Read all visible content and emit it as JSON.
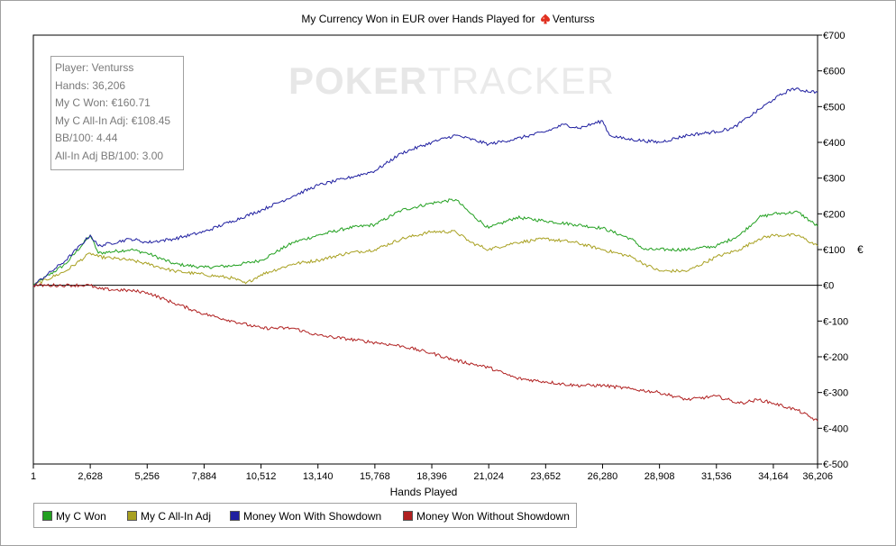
{
  "chart_data": {
    "type": "line",
    "title": "My Currency Won in EUR over Hands Played for",
    "player_name": "Venturss",
    "xlabel": "Hands Played",
    "ylabel": "€",
    "xlim": [
      1,
      36206
    ],
    "ylim": [
      -500,
      700
    ],
    "x_ticks": [
      "1",
      "2,628",
      "5,256",
      "7,884",
      "10,512",
      "13,140",
      "15,768",
      "18,396",
      "21,024",
      "23,652",
      "26,280",
      "28,908",
      "31,536",
      "34,164",
      "36,206"
    ],
    "y_ticks": [
      "€700",
      "€600",
      "€500",
      "€400",
      "€300",
      "€200",
      "€100",
      "€0",
      "€-100",
      "€-200",
      "€-300",
      "€-400",
      "€-500"
    ],
    "legend_position": "bottom",
    "grid": false,
    "series": [
      {
        "name": "My C Won",
        "color": "#22a020",
        "x": [
          1,
          1500,
          2628,
          3000,
          4500,
          5256,
          6500,
          7884,
          9200,
          10512,
          12000,
          13140,
          14500,
          15768,
          17000,
          18396,
          19500,
          20200,
          21024,
          22300,
          23652,
          25000,
          26280,
          27600,
          28200,
          28908,
          30200,
          31536,
          32600,
          33500,
          34164,
          35300,
          36206
        ],
        "y": [
          0,
          60,
          140,
          90,
          100,
          90,
          60,
          50,
          55,
          70,
          120,
          140,
          160,
          170,
          210,
          230,
          240,
          200,
          160,
          190,
          180,
          170,
          160,
          130,
          100,
          100,
          100,
          110,
          140,
          190,
          200,
          205,
          165
        ]
      },
      {
        "name": "My C All-In Adj",
        "color": "#a8a020",
        "x": [
          1,
          1500,
          2628,
          3000,
          4500,
          5256,
          6500,
          7884,
          9200,
          9800,
          10512,
          12000,
          13140,
          14500,
          15768,
          17000,
          18396,
          19500,
          20200,
          21024,
          22300,
          23652,
          25000,
          26280,
          27600,
          28200,
          28908,
          30200,
          31536,
          32600,
          33500,
          34164,
          35300,
          36206
        ],
        "y": [
          0,
          40,
          90,
          80,
          70,
          60,
          40,
          30,
          20,
          5,
          30,
          60,
          70,
          90,
          100,
          130,
          150,
          150,
          120,
          100,
          120,
          130,
          120,
          100,
          80,
          60,
          40,
          40,
          80,
          100,
          130,
          140,
          140,
          110
        ]
      },
      {
        "name": "Money Won With Showdown",
        "color": "#1f1fa0",
        "x": [
          1,
          1500,
          2628,
          3000,
          4500,
          5256,
          6500,
          7884,
          9200,
          10512,
          12000,
          13140,
          14500,
          15768,
          17000,
          18396,
          19500,
          21024,
          22300,
          23652,
          24500,
          25200,
          26280,
          26600,
          27300,
          28908,
          30200,
          31536,
          32300,
          33000,
          34164,
          35000,
          36206
        ],
        "y": [
          0,
          70,
          140,
          110,
          130,
          120,
          130,
          150,
          180,
          210,
          250,
          280,
          300,
          320,
          370,
          400,
          420,
          395,
          410,
          430,
          450,
          440,
          460,
          420,
          410,
          400,
          420,
          430,
          440,
          470,
          520,
          550,
          540
        ]
      },
      {
        "name": "Money Won Without Showdown",
        "color": "#b02020",
        "x": [
          1,
          1500,
          2628,
          3000,
          4500,
          5256,
          6500,
          7884,
          9200,
          10512,
          12000,
          13140,
          14500,
          15768,
          17000,
          18396,
          19500,
          21024,
          22300,
          23652,
          25000,
          26280,
          27600,
          28908,
          30200,
          31536,
          32600,
          33500,
          34164,
          35300,
          36206
        ],
        "y": [
          0,
          0,
          0,
          -10,
          -15,
          -20,
          -50,
          -80,
          -100,
          -120,
          -120,
          -140,
          -150,
          -160,
          -170,
          -190,
          -210,
          -230,
          -260,
          -270,
          -280,
          -280,
          -290,
          -300,
          -320,
          -310,
          -330,
          -320,
          -330,
          -350,
          -380
        ]
      }
    ]
  },
  "stats": {
    "player": "Player: Venturss",
    "hands": "Hands: 36,206",
    "won": "My C Won: €160.71",
    "all_in_adj": "My C All-In Adj: €108.45",
    "bb100": "BB/100: 4.44",
    "all_in_bb100": "All-In Adj BB/100: 3.00"
  },
  "watermark": {
    "part1": "POKER",
    "part2": "TRACKER"
  },
  "legend": {
    "items": [
      {
        "label": "My C Won",
        "color": "#22a020"
      },
      {
        "label": "My C All-In Adj",
        "color": "#a8a020"
      },
      {
        "label": "Money Won With Showdown",
        "color": "#1f1fa0"
      },
      {
        "label": "Money Won Without Showdown",
        "color": "#b02020"
      }
    ]
  },
  "icons": {
    "title_icon": "spade-icon",
    "spade_color": "#e03020"
  }
}
